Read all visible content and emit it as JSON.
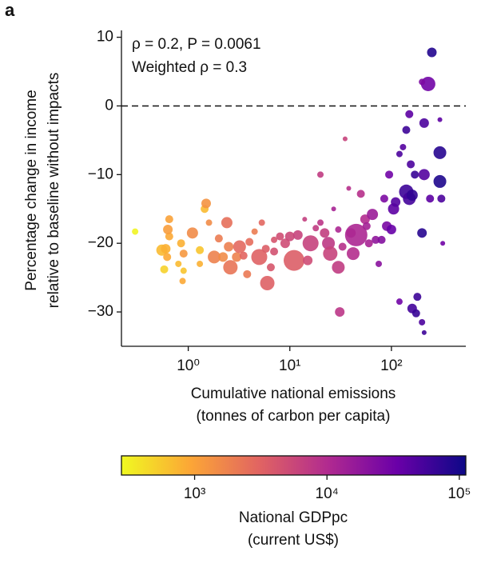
{
  "chart_data": {
    "type": "scatter",
    "panel_label": "a",
    "annotations": [
      "ρ = 0.2, P = 0.0061",
      "Weighted ρ = 0.3"
    ],
    "xlabel": [
      "Cumulative national emissions",
      "(tonnes of carbon per capita)"
    ],
    "ylabel": [
      "Percentage change in income",
      "relative to baseline without impacts"
    ],
    "xlog": true,
    "xlim": [
      0.22,
      540
    ],
    "xticks": [
      {
        "value": 1,
        "label": "10⁰"
      },
      {
        "value": 10,
        "label": "10¹"
      },
      {
        "value": 100,
        "label": "10²"
      }
    ],
    "ylim": [
      -35,
      11
    ],
    "yticks": [
      10,
      0,
      {
        "value": -10,
        "label": "−10"
      },
      {
        "value": -20,
        "label": "−20"
      },
      {
        "value": -30,
        "label": "−30"
      }
    ],
    "hline": 0,
    "series": [
      {
        "x": [
          0.3,
          0.55,
          0.6,
          0.58,
          0.62,
          0.65,
          0.65,
          0.63,
          0.8,
          0.85,
          0.9,
          0.88,
          0.9,
          1.1,
          1.3,
          1.45,
          1.5,
          1.3,
          1.6,
          1.8,
          2,
          2.2,
          2.4,
          2.6,
          2.5,
          3,
          3.2,
          3.5,
          3.8,
          4,
          4.5,
          5,
          5.3,
          5.8,
          6,
          6.5,
          7,
          7,
          8,
          9,
          11,
          10,
          12,
          14,
          15,
          16,
          18,
          20,
          20,
          22,
          24,
          25,
          30,
          31,
          33,
          35,
          38,
          40,
          45,
          42,
          50,
          55,
          57,
          65,
          70,
          75,
          60,
          30,
          27,
          80,
          85,
          90,
          95,
          100,
          105,
          110,
          120,
          130,
          140,
          150,
          160,
          170,
          150,
          140,
          155,
          160,
          175,
          180,
          210,
          200,
          210,
          230,
          250,
          240,
          200,
          210,
          300,
          300,
          310,
          320,
          200,
          120,
          300
        ],
        "y": [
          -18.3,
          -21,
          -20.8,
          -23.8,
          -22,
          -16.5,
          -19,
          -18,
          -23,
          -20,
          -24,
          -25.5,
          -21.5,
          -18.5,
          -21,
          -15,
          -14.2,
          -23,
          -17,
          -22,
          -19.3,
          -22,
          -17,
          -23.5,
          -20.5,
          -22,
          -20.5,
          -21.8,
          -24.5,
          -19.8,
          -18.3,
          -22,
          -17,
          -20.8,
          -25.8,
          -23.5,
          -19.5,
          -21.2,
          -19,
          -20,
          -22.5,
          -19,
          -18.8,
          -16.5,
          -22.5,
          -20,
          -17.8,
          -17,
          -10,
          -18.5,
          -20,
          -21.5,
          -23.5,
          -30,
          -20.5,
          -4.8,
          -12,
          -18.5,
          -18.8,
          -21.5,
          -12.8,
          -16.5,
          -17.5,
          -15.8,
          -19.5,
          -23,
          -20,
          -18,
          -15,
          -19.5,
          -13.5,
          -17.5,
          -10,
          -18,
          -15,
          -14,
          -7,
          -6,
          -12.5,
          -13.5,
          -13,
          -10,
          -1.2,
          -3.5,
          -8.5,
          -29.5,
          -30.2,
          -27.8,
          -2.5,
          -18.5,
          -10,
          3.2,
          7.8,
          -13.5,
          -31.5,
          -33,
          -6.8,
          -11,
          -13.5,
          -20,
          3.5,
          -28.5,
          -2
        ],
        "sizes": [
          4,
          7,
          6,
          5,
          5,
          5,
          5,
          6,
          4,
          5,
          4,
          4,
          5,
          7,
          5,
          5,
          6,
          4,
          4,
          8,
          5,
          6,
          7,
          9,
          6,
          6,
          8,
          5,
          5,
          5,
          4,
          10,
          4,
          5,
          9,
          5,
          4,
          5,
          5,
          6,
          13,
          6,
          6,
          3,
          6,
          10,
          4,
          4,
          4,
          6,
          8,
          9,
          8,
          6,
          5,
          3,
          3,
          6,
          14,
          8,
          5,
          6,
          5,
          7,
          5,
          4,
          5,
          4,
          3,
          5,
          5,
          6,
          5,
          6,
          7,
          6,
          4,
          4,
          9,
          8,
          7,
          5,
          5,
          5,
          5,
          6,
          5,
          5,
          6,
          6,
          7,
          9,
          6,
          5,
          4,
          3,
          8,
          8,
          5,
          3,
          4,
          4,
          3
        ],
        "gdppc": [
          300,
          700,
          800,
          500,
          900,
          1000,
          900,
          1100,
          700,
          800,
          600,
          900,
          1200,
          1500,
          600,
          700,
          1300,
          800,
          1500,
          1800,
          2000,
          1500,
          2500,
          2300,
          1900,
          1800,
          2800,
          3000,
          2100,
          2600,
          2000,
          3200,
          2900,
          3500,
          3300,
          4000,
          4200,
          4500,
          4800,
          5000,
          3500,
          5500,
          6000,
          6500,
          5000,
          6200,
          7000,
          8000,
          7000,
          6800,
          7500,
          6000,
          7000,
          8000,
          9000,
          6000,
          9000,
          10000,
          11000,
          9500,
          9000,
          10000,
          13000,
          15000,
          18000,
          20000,
          12000,
          11000,
          12000,
          22000,
          25000,
          26000,
          30000,
          35000,
          40000,
          45000,
          50000,
          45000,
          60000,
          55000,
          70000,
          65000,
          40000,
          60000,
          50000,
          55000,
          65000,
          60000,
          50000,
          80000,
          45000,
          30000,
          85000,
          40000,
          50000,
          60000,
          80000,
          90000,
          50000,
          30000,
          25000,
          30000,
          40000
        ]
      }
    ],
    "colorbar": {
      "label": [
        "National GDPpc",
        "(current US$)"
      ],
      "log": true,
      "lim": [
        280,
        112000
      ],
      "ticks": [
        {
          "value": 1000,
          "label": "10³"
        },
        {
          "value": 10000,
          "label": "10⁴"
        },
        {
          "value": 100000,
          "label": "10⁵"
        }
      ],
      "colors": [
        "#f0f921",
        "#fca636",
        "#e16462",
        "#b12a90",
        "#6a00a8",
        "#0d0887"
      ]
    }
  }
}
